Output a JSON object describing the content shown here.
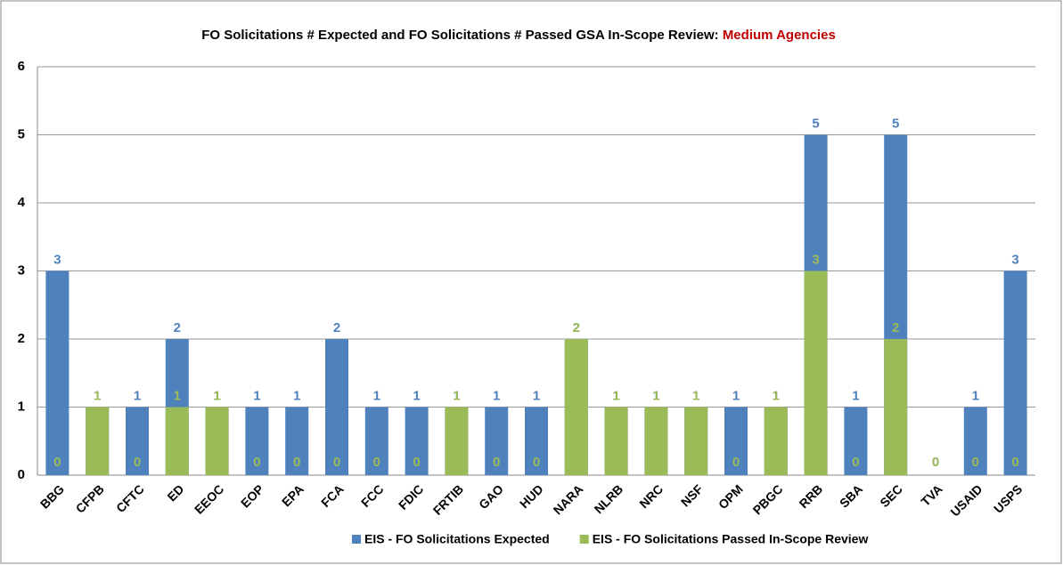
{
  "chart_data": {
    "type": "bar",
    "title": "FO Solicitations # Expected and FO Solicitations # Passed GSA In-Scope Review:",
    "title_highlight": "Medium Agencies",
    "title_highlight_color": "#c00000",
    "categories": [
      "BBG",
      "CFPB",
      "CFTC",
      "ED",
      "EEOC",
      "EOP",
      "EPA",
      "FCA",
      "FCC",
      "FDIC",
      "FRTIB",
      "GAO",
      "HUD",
      "NARA",
      "NLRB",
      "NRC",
      "NSF",
      "OPM",
      "PBGC",
      "RRB",
      "SBA",
      "SEC",
      "TVA",
      "USAID",
      "USPS"
    ],
    "series": [
      {
        "name": "EIS - FO Solicitations Expected",
        "color": "#4f81bd",
        "values": [
          3,
          1,
          1,
          2,
          1,
          1,
          1,
          2,
          1,
          1,
          1,
          1,
          1,
          2,
          1,
          1,
          1,
          1,
          1,
          5,
          1,
          5,
          0,
          1,
          3
        ]
      },
      {
        "name": "EIS - FO Solicitations Passed In-Scope Review",
        "color": "#9bbb59",
        "values": [
          0,
          1,
          0,
          1,
          1,
          0,
          0,
          0,
          0,
          0,
          1,
          0,
          0,
          2,
          1,
          1,
          1,
          0,
          1,
          3,
          0,
          2,
          0,
          0,
          0
        ]
      }
    ],
    "ylim": [
      0,
      6
    ],
    "yticks": [
      0,
      1,
      2,
      3,
      4,
      5,
      6
    ],
    "grid": true,
    "legend": "bottom"
  }
}
